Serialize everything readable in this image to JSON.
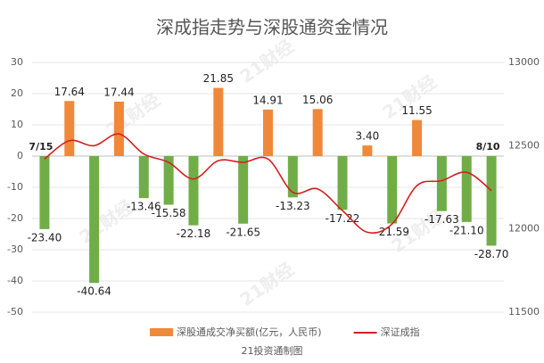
{
  "chart_data": {
    "type": "bar",
    "title": "深成指走势与深股通资金情况",
    "footer": "21投资通制图",
    "watermark": "21财经",
    "categories": [
      "7/15",
      null,
      null,
      null,
      null,
      null,
      null,
      null,
      null,
      null,
      null,
      null,
      null,
      null,
      null,
      null,
      null,
      null,
      "8/10"
    ],
    "series": [
      {
        "name": "深股通成交净买额(亿元，人民币)",
        "type": "bar",
        "color": "#f0883a",
        "negative_color": "#70ad47",
        "values": [
          -23.4,
          17.64,
          -40.64,
          17.44,
          -13.46,
          -15.58,
          -22.18,
          21.85,
          -21.65,
          14.91,
          -13.23,
          15.06,
          -17.22,
          3.4,
          -21.59,
          11.55,
          -17.63,
          -21.1,
          -28.7
        ],
        "value_labels": [
          "-23.40",
          "17.64",
          "-40.64",
          "17.44",
          "-13.46",
          "-15.58",
          "-22.18",
          "21.85",
          "-21.65",
          "14.91",
          "-13.23",
          "15.06",
          "-17.22",
          "3.40",
          "-21.59",
          "11.55",
          "-17.63",
          "-21.10",
          "-28.70"
        ]
      },
      {
        "name": "深证成指",
        "type": "line",
        "axis": "y2",
        "color": "#d42020",
        "values": [
          12420,
          12530,
          12500,
          12570,
          12450,
          12400,
          12300,
          12410,
          12400,
          12420,
          12220,
          12240,
          12110,
          11980,
          12030,
          12260,
          12290,
          12340,
          12230
        ]
      }
    ],
    "ylim": [
      -50,
      30
    ],
    "yticks": [
      -50,
      -40,
      -30,
      -20,
      -10,
      0,
      10,
      20,
      30
    ],
    "y2lim": [
      11500,
      13000
    ],
    "y2ticks": [
      11500,
      12000,
      12500,
      13000
    ],
    "grid": true
  }
}
